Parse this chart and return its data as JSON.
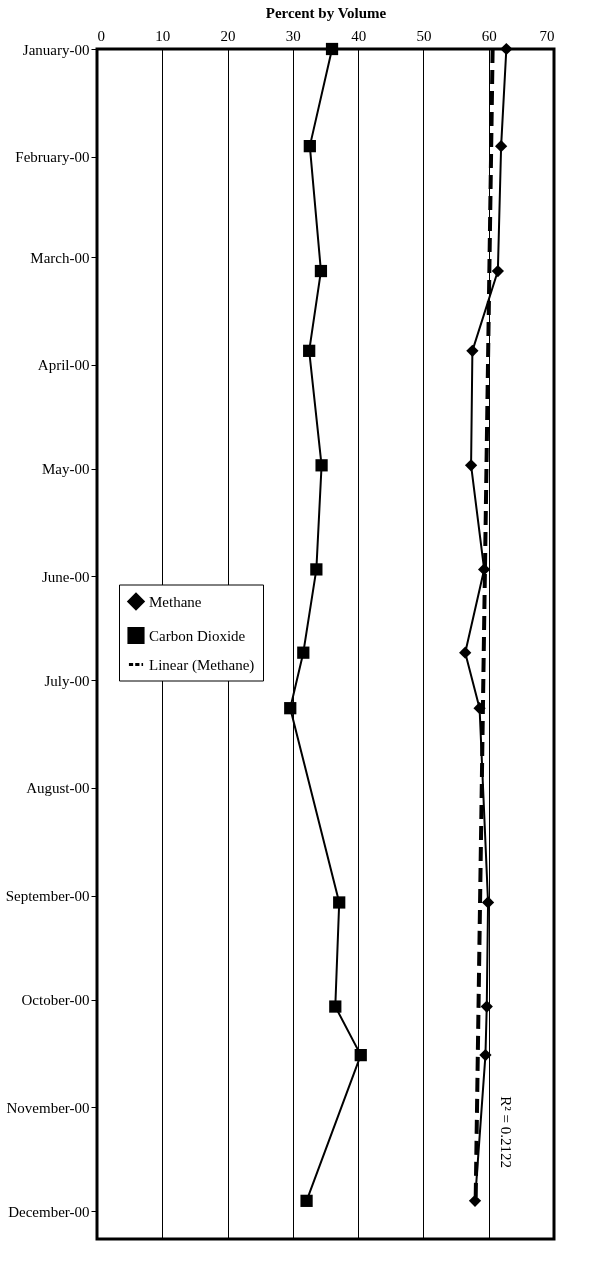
{
  "chart_data": {
    "type": "line",
    "orientation": "horizontal",
    "xlabel": "Percent by Volume",
    "x": [
      "2000-01-01",
      "2000-01-29",
      "2000-03-05",
      "2000-03-28",
      "2000-04-30",
      "2000-05-30",
      "2000-06-23",
      "2000-07-09",
      "2000-09-03",
      "2000-10-03",
      "2000-10-17",
      "2000-11-28"
    ],
    "series": [
      {
        "name": "Methane",
        "color": "#000000",
        "marker": "diamond",
        "values": [
          62.7,
          61.9,
          61.4,
          57.5,
          57.3,
          59.3,
          56.4,
          58.6,
          59.9,
          59.7,
          59.5,
          57.9
        ]
      },
      {
        "name": "Carbon Dioxide",
        "color": "#000000",
        "marker": "square",
        "values": [
          36.0,
          32.6,
          34.3,
          32.5,
          34.4,
          33.6,
          31.6,
          29.6,
          37.1,
          36.5,
          40.4,
          32.1
        ]
      },
      {
        "name": "Linear (Methane)",
        "type": "line",
        "color": "#000000",
        "marker": "none",
        "line_style": "dashed",
        "x": [
          "2000-01-01",
          "2000-11-28"
        ],
        "values": [
          60.6,
          58.0
        ]
      }
    ],
    "ylim": [
      "2000-12-09",
      "2000-01-01"
    ],
    "yticks": [
      {
        "value": "2000-01-01",
        "label": "January-00"
      },
      {
        "value": "2000-02-01",
        "label": "February-00"
      },
      {
        "value": "2000-03-01",
        "label": "March-00"
      },
      {
        "value": "2000-04-01",
        "label": "April-00"
      },
      {
        "value": "2000-05-01",
        "label": "May-00"
      },
      {
        "value": "2000-06-01",
        "label": "June-00"
      },
      {
        "value": "2000-07-01",
        "label": "July-00"
      },
      {
        "value": "2000-08-01",
        "label": "August-00"
      },
      {
        "value": "2000-09-01",
        "label": "September-00"
      },
      {
        "value": "2000-10-01",
        "label": "October-00"
      },
      {
        "value": "2000-11-01",
        "label": "November-00"
      },
      {
        "value": "2000-12-01",
        "label": "December-00"
      }
    ],
    "xlim": [
      0,
      70
    ],
    "xticks": [
      0,
      10,
      20,
      30,
      40,
      50,
      60,
      70
    ],
    "grid": "x",
    "legend": "left",
    "annotations": [
      "R² = 0.2122"
    ]
  }
}
